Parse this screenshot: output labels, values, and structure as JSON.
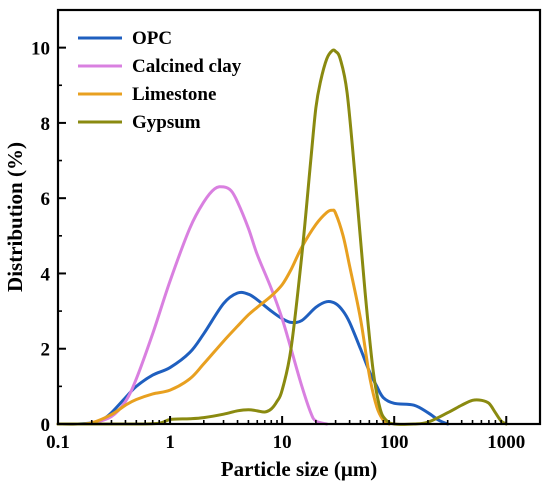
{
  "chart_data": {
    "type": "line",
    "title": "",
    "xlabel": "Particle size  (μm)",
    "ylabel": "Distribution (%)",
    "xscale": "log",
    "xlim": [
      0.1,
      2000
    ],
    "ylim": [
      0,
      11
    ],
    "xticks": [
      0.1,
      1,
      10,
      100,
      1000
    ],
    "xtick_labels": [
      "0.1",
      "1",
      "10",
      "100",
      "1000"
    ],
    "yticks": [
      0,
      2,
      4,
      6,
      8,
      10
    ],
    "ytick_labels": [
      "0",
      "2",
      "4",
      "6",
      "8",
      "10"
    ],
    "legend_position": "top-left",
    "grid": false,
    "series": [
      {
        "name": "OPC",
        "color": "#1f5fbf",
        "x": [
          0.1,
          0.15,
          0.2,
          0.25,
          0.3,
          0.4,
          0.5,
          0.7,
          1,
          1.5,
          2,
          3,
          4,
          5,
          6,
          8,
          10,
          12,
          15,
          20,
          25,
          30,
          35,
          40,
          50,
          60,
          70,
          80,
          100,
          150,
          200,
          250,
          300
        ],
        "values": [
          0,
          0,
          0.03,
          0.12,
          0.3,
          0.7,
          1.0,
          1.3,
          1.5,
          1.9,
          2.4,
          3.2,
          3.48,
          3.45,
          3.3,
          3.0,
          2.8,
          2.7,
          2.75,
          3.1,
          3.25,
          3.2,
          3.0,
          2.7,
          2.0,
          1.4,
          1.0,
          0.7,
          0.55,
          0.5,
          0.3,
          0.1,
          0
        ]
      },
      {
        "name": "Calcined clay",
        "color": "#d980e0",
        "x": [
          0.1,
          0.15,
          0.2,
          0.3,
          0.4,
          0.5,
          0.7,
          1,
          1.5,
          2,
          2.5,
          3,
          3.5,
          4,
          5,
          6,
          8,
          10,
          12,
          15,
          18,
          20,
          25
        ],
        "values": [
          0,
          0,
          0.02,
          0.2,
          0.6,
          1.2,
          2.4,
          3.8,
          5.2,
          5.9,
          6.25,
          6.3,
          6.2,
          5.9,
          5.2,
          4.5,
          3.6,
          2.8,
          2.0,
          1.0,
          0.3,
          0.08,
          0
        ]
      },
      {
        "name": "Limestone",
        "color": "#e8a020",
        "x": [
          0.1,
          0.15,
          0.2,
          0.3,
          0.4,
          0.5,
          0.7,
          1,
          1.5,
          2,
          3,
          4,
          5,
          6,
          8,
          10,
          12,
          15,
          20,
          25,
          28,
          30,
          35,
          40,
          50,
          60,
          70,
          80,
          90
        ],
        "values": [
          0,
          0,
          0.03,
          0.25,
          0.5,
          0.65,
          0.8,
          0.9,
          1.2,
          1.6,
          2.2,
          2.6,
          2.9,
          3.1,
          3.4,
          3.7,
          4.1,
          4.7,
          5.3,
          5.62,
          5.68,
          5.6,
          5.0,
          4.2,
          2.8,
          1.3,
          0.45,
          0.1,
          0
        ]
      },
      {
        "name": "Gypsum",
        "color": "#8a8a10",
        "x": [
          0.1,
          0.5,
          0.8,
          1,
          1.5,
          2,
          3,
          4,
          5,
          6,
          7,
          8,
          9,
          10,
          12,
          15,
          18,
          20,
          22,
          25,
          28,
          30,
          33,
          38,
          45,
          55,
          65,
          75,
          85,
          100,
          150,
          200,
          300,
          400,
          500,
          600,
          700,
          800,
          900,
          1000
        ],
        "values": [
          0,
          0,
          0.02,
          0.12,
          0.14,
          0.17,
          0.26,
          0.35,
          0.38,
          0.35,
          0.32,
          0.4,
          0.6,
          0.9,
          2.0,
          4.5,
          7.0,
          8.4,
          9.1,
          9.7,
          9.92,
          9.9,
          9.7,
          8.8,
          6.5,
          3.5,
          1.4,
          0.4,
          0.1,
          0,
          0,
          0.05,
          0.3,
          0.5,
          0.63,
          0.63,
          0.55,
          0.3,
          0.08,
          0
        ]
      }
    ]
  }
}
